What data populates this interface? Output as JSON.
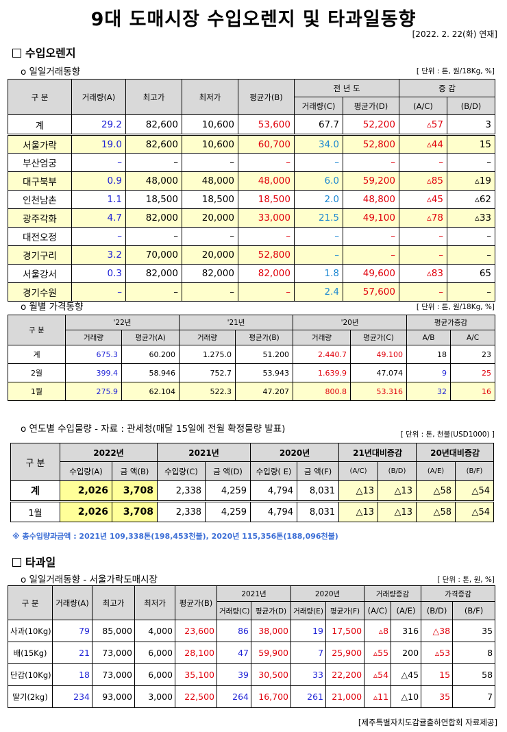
{
  "title": "9대 도매시장 수입오렌지 및 타과일동향",
  "date": "[2022. 2. 22(화) 연재]",
  "orange": {
    "heading": "수입오렌지",
    "daily": {
      "subheading": "ο 일일거래동향",
      "unit": "[ 단위 : 톤, 원/18Kg, %]",
      "headers": {
        "category": "구   분",
        "volume": "거래량(A)",
        "high": "최고가",
        "low": "최저가",
        "avg": "평균가(B)",
        "prev_year": "전 년 도",
        "prev_volume": "거래량(C)",
        "prev_avg": "평균가(D)",
        "change": "증   감",
        "ac": "(A/C)",
        "bd": "(B/D)"
      },
      "rows": [
        {
          "name": "계",
          "vol": "29.2",
          "high": "82,600",
          "low": "10,600",
          "avg": "53,600",
          "pvol": "67.7",
          "pavg": "52,200",
          "ac": "▵57",
          "bd": "3"
        },
        {
          "name": "서울가락",
          "vol": "19.0",
          "high": "82,600",
          "low": "10,600",
          "avg": "60,700",
          "pvol": "34.0",
          "pavg": "52,800",
          "ac": "▵44",
          "bd": "15"
        },
        {
          "name": "부산엄궁",
          "vol": "–",
          "high": "–",
          "low": "–",
          "avg": "–",
          "pvol": "–",
          "pavg": "–",
          "ac": "–",
          "bd": "–"
        },
        {
          "name": "대구북부",
          "vol": "0.9",
          "high": "48,000",
          "low": "48,000",
          "avg": "48,000",
          "pvol": "6.0",
          "pavg": "59,200",
          "ac": "▵85",
          "bd": "▵19"
        },
        {
          "name": "인천남촌",
          "vol": "1.1",
          "high": "18,500",
          "low": "18,500",
          "avg": "18,500",
          "pvol": "2.0",
          "pavg": "48,800",
          "ac": "▵45",
          "bd": "▵62"
        },
        {
          "name": "광주각화",
          "vol": "4.7",
          "high": "82,000",
          "low": "20,000",
          "avg": "33,000",
          "pvol": "21.5",
          "pavg": "49,100",
          "ac": "▵78",
          "bd": "▵33"
        },
        {
          "name": "대전오정",
          "vol": "–",
          "high": "–",
          "low": "–",
          "avg": "–",
          "pvol": "–",
          "pavg": "–",
          "ac": "–",
          "bd": "–"
        },
        {
          "name": "경기구리",
          "vol": "3.2",
          "high": "70,000",
          "low": "20,000",
          "avg": "52,800",
          "pvol": "–",
          "pavg": "–",
          "ac": "–",
          "bd": "–"
        },
        {
          "name": "서울강서",
          "vol": "0.3",
          "high": "82,000",
          "low": "82,000",
          "avg": "82,000",
          "pvol": "1.8",
          "pavg": "49,600",
          "ac": "▵83",
          "bd": "65"
        },
        {
          "name": "경기수원",
          "vol": "–",
          "high": "–",
          "low": "–",
          "avg": "–",
          "pvol": "2.4",
          "pavg": "57,600",
          "ac": "–",
          "bd": "–"
        }
      ]
    },
    "monthly": {
      "subheading": "ο 월별 가격동향",
      "unit": "[ 단위 : 톤, 원/18Kg, %]",
      "headers": {
        "category": "구   분",
        "y22": "'22년",
        "y21": "'21년",
        "y20": "'20년",
        "avg_change": "평균가증감",
        "vol": "거래량",
        "avg_a": "평균가(A)",
        "avg_b": "평균가(B)",
        "avg_c": "평균가(C)",
        "ab": "A/B",
        "ac": "A/C"
      },
      "rows": [
        {
          "name": "계",
          "v22": "675.3",
          "a22": "60.200",
          "v21": "1.275.0",
          "a21": "51.200",
          "v20": "2.440.7",
          "a20": "49.100",
          "ab": "18",
          "ac": "23"
        },
        {
          "name": "2월",
          "v22": "399.4",
          "a22": "58.946",
          "v21": "752.7",
          "a21": "53.943",
          "v20": "1.639.9",
          "a20": "47.074",
          "ab": "9",
          "ac": "25"
        },
        {
          "name": "1월",
          "v22": "275.9",
          "a22": "62.104",
          "v21": "522.3",
          "a21": "47.207",
          "v20": "800.8",
          "a20": "53.316",
          "ab": "32",
          "ac": "16"
        }
      ]
    },
    "import": {
      "subheading": "ο 연도별 수입물량 - 자료 : 관세청(매달 15일에 전월 확정물량 발표)",
      "unit": "[ 단위 : 톤, 천불(USD1000) ]",
      "headers": {
        "category": "구 분",
        "y2022": "2022년",
        "y2021": "2021년",
        "y2020": "2020년",
        "c21": "21년대비증감",
        "c20": "20년대비증감",
        "qa": "수입량(A)",
        "ab": "금   액(B)",
        "qc": "수입량(C)",
        "ad": "금   액(D)",
        "qe": "수입량( E)",
        "af": "금   액(F)",
        "ac": "(A/C)",
        "bd": "(B/D)",
        "ae": "(A/E)",
        "bf": "(B/F)"
      },
      "rows": [
        {
          "name": "계",
          "qa": "2,026",
          "ab": "3,708",
          "qc": "2,338",
          "ad": "4,259",
          "qe": "4,794",
          "af": "8,031",
          "ac": "△13",
          "bd": "△13",
          "ae": "△58",
          "bf": "△54"
        },
        {
          "name": "1월",
          "qa": "2,026",
          "ab": "3,708",
          "qc": "2,338",
          "ad": "4,259",
          "qe": "4,794",
          "af": "8,031",
          "ac": "△13",
          "bd": "△13",
          "ae": "△58",
          "bf": "△54"
        }
      ],
      "note": "※ 총수입량과금액 : 2021년 109,338톤(198,453천불),  2020년 115,356톤(188,096천불)"
    }
  },
  "fruit": {
    "heading": "타과일",
    "subheading": "ο 일일거래동향 - 서울가락도매시장",
    "unit": "[ 단위 : 톤, 원, %]",
    "headers": {
      "category": "구  분",
      "vol": "거래량(A)",
      "high": "최고가",
      "low": "최저가",
      "avg": "평균가(B)",
      "y2021": "2021년",
      "y2020": "2020년",
      "vol_change": "거래량증감",
      "price_change": "가격증감",
      "vc": "거래량(C)",
      "ad": "평균가(D)",
      "ve": "거래량(E)",
      "af": "평균가(F)",
      "ac": "(A/C)",
      "ae": "(A/E)",
      "bd": "(B/D)",
      "bf": "(B/F)"
    },
    "rows": [
      {
        "name": "사과(10Kg)",
        "vol": "79",
        "high": "85,000",
        "low": "4,000",
        "avg": "23,600",
        "vc": "86",
        "ad": "38,000",
        "ve": "19",
        "af": "17,500",
        "ac": "▵8",
        "ae": "316",
        "bd": "△38",
        "bf": "35"
      },
      {
        "name": "배(15Kg)",
        "vol": "21",
        "high": "73,000",
        "low": "6,000",
        "avg": "28,100",
        "vc": "47",
        "ad": "59,900",
        "ve": "7",
        "af": "25,900",
        "ac": "▵55",
        "ae": "200",
        "bd": "▵53",
        "bf": "8"
      },
      {
        "name": "단감(10Kg)",
        "vol": "18",
        "high": "73,000",
        "low": "6,000",
        "avg": "35,100",
        "vc": "39",
        "ad": "30,500",
        "ve": "33",
        "af": "22,200",
        "ac": "▵54",
        "ae": "△45",
        "bd": "15",
        "bf": "58"
      },
      {
        "name": "딸기(2kg)",
        "vol": "234",
        "high": "93,000",
        "low": "3,000",
        "avg": "22,500",
        "vc": "264",
        "ad": "16,700",
        "ve": "261",
        "af": "21,000",
        "ac": "▵11",
        "ae": "△10",
        "bd": "35",
        "bf": "7"
      }
    ]
  },
  "footer": "[제주특별자치도감귤출하연합회 자료제공]"
}
